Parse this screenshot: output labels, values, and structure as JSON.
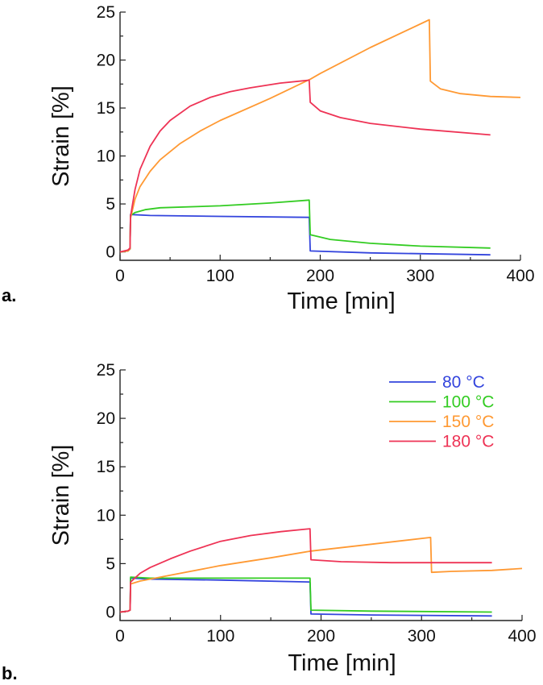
{
  "colors": {
    "80": "#3344dd",
    "100": "#33cc22",
    "150": "#ff9933",
    "180": "#ee3355"
  },
  "chart_data": [
    {
      "type": "line",
      "panel_label": "a.",
      "xlabel": "Time [min]",
      "ylabel": "Strain [%]",
      "xlim": [
        0,
        400
      ],
      "ylim": [
        0,
        25
      ],
      "xticks": [
        0,
        100,
        200,
        300,
        400
      ],
      "yticks": [
        0,
        5,
        10,
        15,
        20,
        25
      ],
      "legend": null,
      "series": [
        {
          "key": "80",
          "points": [
            [
              0,
              0
            ],
            [
              8,
              0.1
            ],
            [
              10,
              0.3
            ],
            [
              10.5,
              3.9
            ],
            [
              30,
              3.8
            ],
            [
              100,
              3.7
            ],
            [
              189,
              3.6
            ],
            [
              190,
              0.1
            ],
            [
              250,
              -0.1
            ],
            [
              370,
              -0.3
            ]
          ]
        },
        {
          "key": "100",
          "points": [
            [
              0,
              0
            ],
            [
              8,
              0.1
            ],
            [
              10,
              0.3
            ],
            [
              10.5,
              3.8
            ],
            [
              15,
              4.1
            ],
            [
              25,
              4.4
            ],
            [
              40,
              4.6
            ],
            [
              100,
              4.8
            ],
            [
              150,
              5.1
            ],
            [
              189,
              5.4
            ],
            [
              190,
              1.8
            ],
            [
              210,
              1.3
            ],
            [
              250,
              0.9
            ],
            [
              300,
              0.6
            ],
            [
              370,
              0.4
            ]
          ]
        },
        {
          "key": "150",
          "points": [
            [
              0,
              0
            ],
            [
              8,
              0.1
            ],
            [
              10,
              0.3
            ],
            [
              10.5,
              3.5
            ],
            [
              15,
              5.5
            ],
            [
              20,
              6.8
            ],
            [
              30,
              8.4
            ],
            [
              40,
              9.6
            ],
            [
              60,
              11.3
            ],
            [
              80,
              12.6
            ],
            [
              100,
              13.7
            ],
            [
              150,
              16.0
            ],
            [
              190,
              18.0
            ],
            [
              200,
              18.6
            ],
            [
              250,
              21.3
            ],
            [
              309,
              24.2
            ],
            [
              310,
              17.8
            ],
            [
              320,
              17.0
            ],
            [
              340,
              16.5
            ],
            [
              370,
              16.2
            ],
            [
              400,
              16.1
            ]
          ]
        },
        {
          "key": "180",
          "points": [
            [
              0,
              0
            ],
            [
              8,
              0.2
            ],
            [
              10,
              0.4
            ],
            [
              10.5,
              3.7
            ],
            [
              15,
              6.5
            ],
            [
              20,
              8.6
            ],
            [
              30,
              11.0
            ],
            [
              40,
              12.6
            ],
            [
              50,
              13.7
            ],
            [
              70,
              15.2
            ],
            [
              90,
              16.1
            ],
            [
              110,
              16.7
            ],
            [
              130,
              17.1
            ],
            [
              160,
              17.6
            ],
            [
              189,
              17.9
            ],
            [
              190,
              15.6
            ],
            [
              200,
              14.7
            ],
            [
              220,
              14.0
            ],
            [
              250,
              13.4
            ],
            [
              300,
              12.8
            ],
            [
              370,
              12.2
            ]
          ]
        }
      ]
    },
    {
      "type": "line",
      "panel_label": "b.",
      "xlabel": "Time [min]",
      "ylabel": "Strain [%]",
      "xlim": [
        0,
        400
      ],
      "ylim": [
        0,
        25
      ],
      "xticks": [
        0,
        100,
        200,
        300,
        400
      ],
      "yticks": [
        0,
        5,
        10,
        15,
        20,
        25
      ],
      "legend": {
        "placement": "top-right",
        "entries": [
          {
            "key": "80",
            "label": "80 °C"
          },
          {
            "key": "100",
            "label": "100 °C"
          },
          {
            "key": "150",
            "label": "150 °C"
          },
          {
            "key": "180",
            "label": "180 °C"
          }
        ]
      },
      "series": [
        {
          "key": "80",
          "points": [
            [
              0,
              0
            ],
            [
              8,
              0.1
            ],
            [
              10,
              0.2
            ],
            [
              10.5,
              3.5
            ],
            [
              30,
              3.4
            ],
            [
              100,
              3.3
            ],
            [
              189,
              3.1
            ],
            [
              190,
              -0.2
            ],
            [
              250,
              -0.3
            ],
            [
              370,
              -0.4
            ]
          ]
        },
        {
          "key": "100",
          "points": [
            [
              0,
              0
            ],
            [
              8,
              0.1
            ],
            [
              10,
              0.2
            ],
            [
              10.5,
              3.6
            ],
            [
              30,
              3.5
            ],
            [
              100,
              3.5
            ],
            [
              189,
              3.5
            ],
            [
              190,
              0.2
            ],
            [
              250,
              0.1
            ],
            [
              370,
              0.0
            ]
          ]
        },
        {
          "key": "150",
          "points": [
            [
              0,
              0
            ],
            [
              8,
              0.1
            ],
            [
              10,
              0.2
            ],
            [
              10.5,
              2.9
            ],
            [
              20,
              3.2
            ],
            [
              50,
              3.8
            ],
            [
              100,
              4.8
            ],
            [
              150,
              5.6
            ],
            [
              190,
              6.3
            ],
            [
              250,
              7.0
            ],
            [
              309,
              7.7
            ],
            [
              310,
              4.1
            ],
            [
              330,
              4.2
            ],
            [
              370,
              4.3
            ],
            [
              400,
              4.5
            ]
          ]
        },
        {
          "key": "180",
          "points": [
            [
              0,
              0
            ],
            [
              8,
              0.1
            ],
            [
              10,
              0.2
            ],
            [
              10.5,
              3.1
            ],
            [
              20,
              4.0
            ],
            [
              30,
              4.6
            ],
            [
              50,
              5.5
            ],
            [
              70,
              6.3
            ],
            [
              100,
              7.3
            ],
            [
              130,
              7.9
            ],
            [
              160,
              8.3
            ],
            [
              189,
              8.6
            ],
            [
              190,
              5.4
            ],
            [
              220,
              5.2
            ],
            [
              270,
              5.1
            ],
            [
              370,
              5.1
            ]
          ]
        }
      ]
    }
  ]
}
